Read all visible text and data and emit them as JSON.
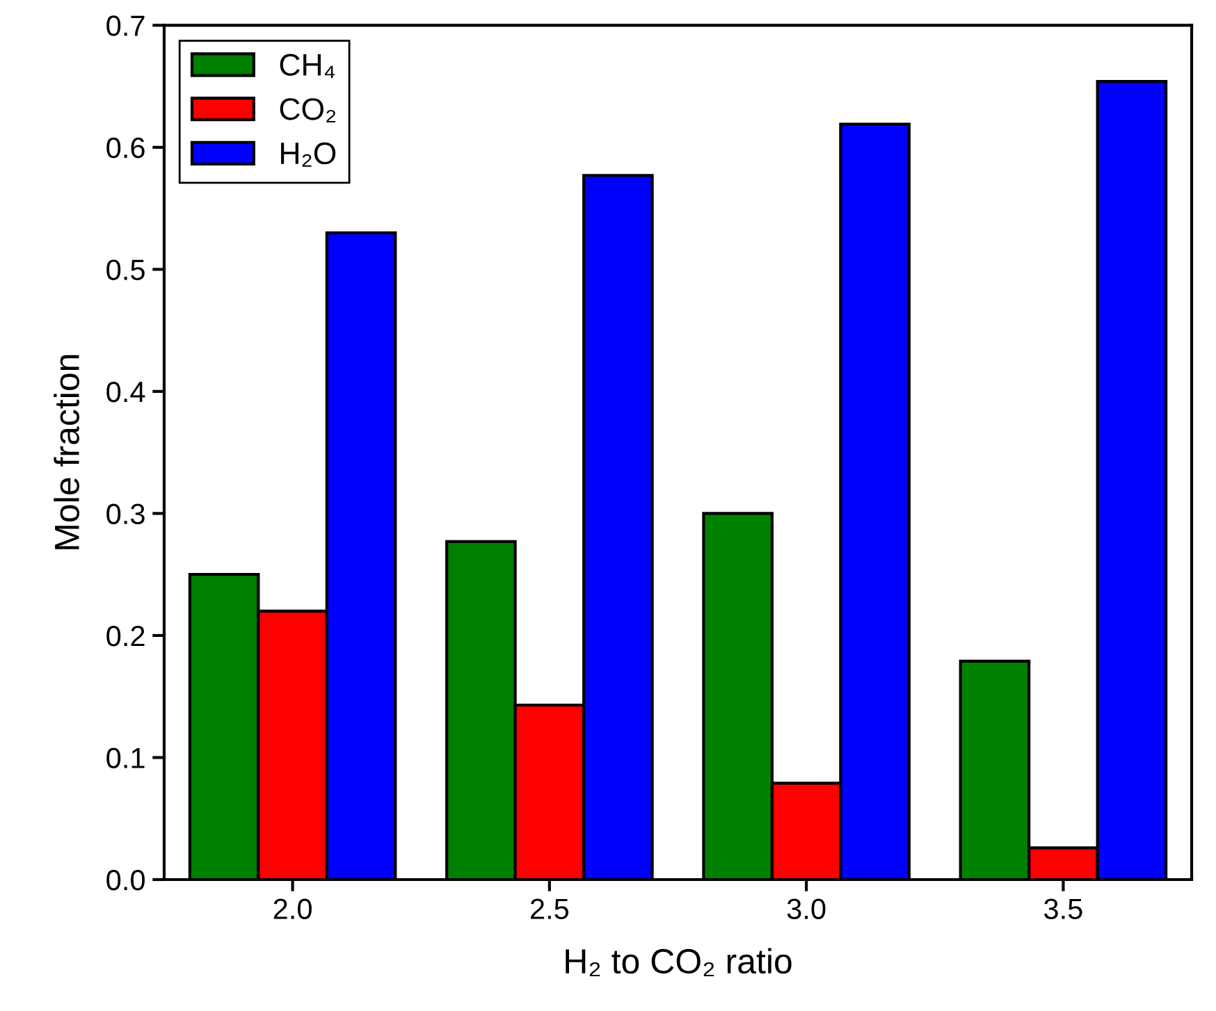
{
  "chart_data": {
    "type": "bar",
    "xlabel": "H₂ to CO₂ ratio",
    "ylabel": "Mole fraction",
    "categories": [
      "2.0",
      "2.5",
      "3.0",
      "3.5"
    ],
    "series": [
      {
        "name": "CH₄",
        "color": "#008000",
        "values": [
          0.25,
          0.277,
          0.3,
          0.179
        ]
      },
      {
        "name": "CO₂",
        "color": "#ff0000",
        "values": [
          0.22,
          0.143,
          0.079,
          0.026
        ]
      },
      {
        "name": "H₂O",
        "color": "#0000ff",
        "values": [
          0.53,
          0.577,
          0.619,
          0.654
        ]
      }
    ],
    "ylim": [
      0,
      0.7
    ],
    "yticks": [
      "0.0",
      0.1,
      0.2,
      0.3,
      0.4,
      0.5,
      0.6,
      0.7
    ],
    "grid": false,
    "legend": "top left"
  }
}
